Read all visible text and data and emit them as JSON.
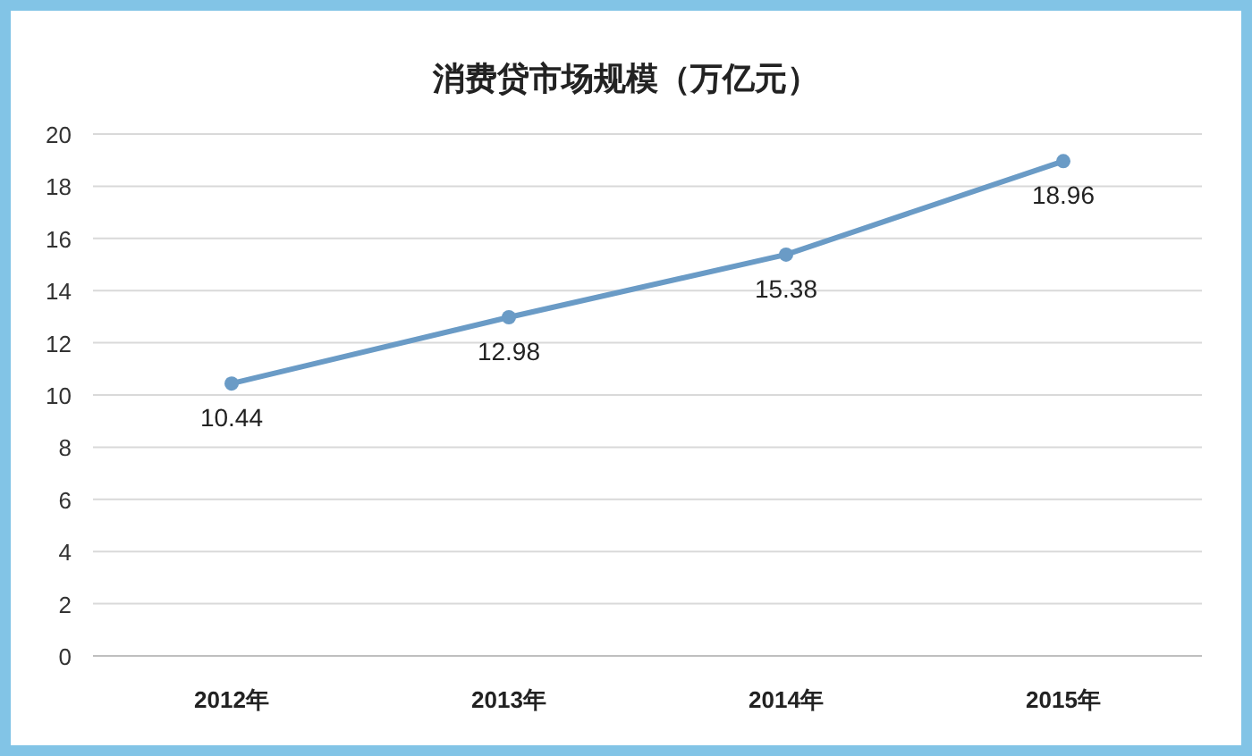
{
  "chart_data": {
    "type": "line",
    "title": "消费贷市场规模（万亿元）",
    "categories": [
      "2012年",
      "2013年",
      "2014年",
      "2015年"
    ],
    "series": [
      {
        "color": "#6a9bc6",
        "values": [
          10.44,
          12.98,
          15.38,
          18.96
        ]
      }
    ],
    "ylim": [
      0,
      20
    ],
    "yticks": [
      0,
      2,
      4,
      6,
      8,
      10,
      12,
      14,
      16,
      18,
      20
    ],
    "grid": "y",
    "marker": "circle",
    "line_style": "solid",
    "data_labels": true
  }
}
